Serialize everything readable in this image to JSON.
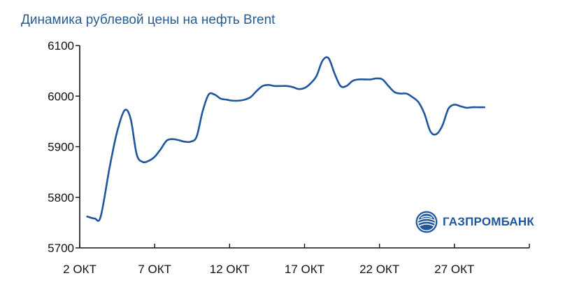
{
  "chart_data": {
    "type": "line",
    "title": "Динамика рублевой цены на нефть Brent",
    "xlabel": "",
    "ylabel": "",
    "ylim": [
      5700,
      6100
    ],
    "yticks": [
      "5700",
      "5800",
      "5900",
      "6000",
      "6100"
    ],
    "xticks": [
      {
        "day": 2,
        "label": "2 ОКТ"
      },
      {
        "day": 7,
        "label": "7 ОКТ"
      },
      {
        "day": 12,
        "label": "12 ОКТ"
      },
      {
        "day": 17,
        "label": "17 ОКТ"
      },
      {
        "day": 22,
        "label": "22 ОКТ"
      },
      {
        "day": 27,
        "label": "27 ОКТ"
      }
    ],
    "xlim": [
      2,
      32
    ],
    "grid": false,
    "series": [
      {
        "color": "#1f569e",
        "points": [
          [
            2.5,
            5762
          ],
          [
            3.0,
            5758
          ],
          [
            3.4,
            5762
          ],
          [
            4.0,
            5860
          ],
          [
            4.5,
            5930
          ],
          [
            5.0,
            5972
          ],
          [
            5.4,
            5955
          ],
          [
            5.8,
            5885
          ],
          [
            6.2,
            5870
          ],
          [
            6.6,
            5872
          ],
          [
            7.0,
            5880
          ],
          [
            7.4,
            5895
          ],
          [
            7.8,
            5912
          ],
          [
            8.2,
            5915
          ],
          [
            8.6,
            5913
          ],
          [
            9.0,
            5910
          ],
          [
            9.4,
            5910
          ],
          [
            9.8,
            5920
          ],
          [
            10.2,
            5970
          ],
          [
            10.6,
            6003
          ],
          [
            11.0,
            6003
          ],
          [
            11.4,
            5995
          ],
          [
            11.8,
            5993
          ],
          [
            12.2,
            5991
          ],
          [
            12.6,
            5991
          ],
          [
            13.0,
            5993
          ],
          [
            13.4,
            5998
          ],
          [
            13.8,
            6010
          ],
          [
            14.2,
            6020
          ],
          [
            14.6,
            6022
          ],
          [
            15.0,
            6020
          ],
          [
            15.4,
            6020
          ],
          [
            15.8,
            6020
          ],
          [
            16.2,
            6018
          ],
          [
            16.6,
            6014
          ],
          [
            17.0,
            6016
          ],
          [
            17.4,
            6025
          ],
          [
            17.8,
            6040
          ],
          [
            18.2,
            6070
          ],
          [
            18.6,
            6075
          ],
          [
            19.0,
            6045
          ],
          [
            19.4,
            6020
          ],
          [
            19.8,
            6020
          ],
          [
            20.2,
            6030
          ],
          [
            20.6,
            6033
          ],
          [
            21.0,
            6033
          ],
          [
            21.4,
            6033
          ],
          [
            21.8,
            6035
          ],
          [
            22.2,
            6033
          ],
          [
            22.6,
            6020
          ],
          [
            23.0,
            6008
          ],
          [
            23.4,
            6005
          ],
          [
            23.8,
            6005
          ],
          [
            24.2,
            5998
          ],
          [
            24.6,
            5988
          ],
          [
            25.0,
            5965
          ],
          [
            25.4,
            5930
          ],
          [
            25.8,
            5925
          ],
          [
            26.2,
            5942
          ],
          [
            26.6,
            5975
          ],
          [
            27.0,
            5983
          ],
          [
            27.4,
            5980
          ],
          [
            27.8,
            5977
          ],
          [
            28.2,
            5978
          ],
          [
            28.6,
            5978
          ],
          [
            29.0,
            5978
          ]
        ]
      }
    ]
  },
  "logo": {
    "text": "ГАЗПРОМБАНК",
    "color": "#1f569e"
  },
  "colors": {
    "title": "#2a5d8f",
    "axis": "#111111"
  }
}
